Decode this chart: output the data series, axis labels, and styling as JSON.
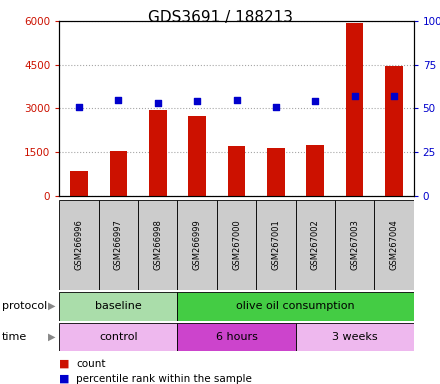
{
  "title": "GDS3691 / 188213",
  "samples": [
    "GSM266996",
    "GSM266997",
    "GSM266998",
    "GSM266999",
    "GSM267000",
    "GSM267001",
    "GSM267002",
    "GSM267003",
    "GSM267004"
  ],
  "count_values": [
    850,
    1530,
    2950,
    2750,
    1700,
    1640,
    1750,
    5950,
    4470
  ],
  "percentile_values": [
    51,
    55,
    53,
    54,
    55,
    51,
    54,
    57,
    57
  ],
  "count_color": "#cc1100",
  "percentile_color": "#0000cc",
  "bar_width": 0.45,
  "ylim_left": [
    0,
    6000
  ],
  "ylim_right": [
    0,
    100
  ],
  "yticks_left": [
    0,
    1500,
    3000,
    4500,
    6000
  ],
  "ytick_labels_left": [
    "0",
    "1500",
    "3000",
    "4500",
    "6000"
  ],
  "yticks_right": [
    0,
    25,
    50,
    75,
    100
  ],
  "ytick_labels_right": [
    "0",
    "25",
    "50",
    "75",
    "100%"
  ],
  "grid_color": "#000000",
  "grid_alpha": 0.35,
  "protocol_groups": [
    {
      "label": "baseline",
      "start": 0,
      "end": 3,
      "color": "#aaddaa"
    },
    {
      "label": "olive oil consumption",
      "start": 3,
      "end": 9,
      "color": "#44cc44"
    }
  ],
  "time_groups": [
    {
      "label": "control",
      "start": 0,
      "end": 3,
      "color": "#eeb8ee"
    },
    {
      "label": "6 hours",
      "start": 3,
      "end": 6,
      "color": "#cc44cc"
    },
    {
      "label": "3 weeks",
      "start": 6,
      "end": 9,
      "color": "#eeb8ee"
    }
  ],
  "legend_count_label": "count",
  "legend_percentile_label": "percentile rank within the sample",
  "protocol_label": "protocol",
  "time_label": "time",
  "sample_box_color": "#cccccc",
  "background_color": "#ffffff",
  "title_fontsize": 11,
  "tick_fontsize": 7.5,
  "label_fontsize": 8
}
